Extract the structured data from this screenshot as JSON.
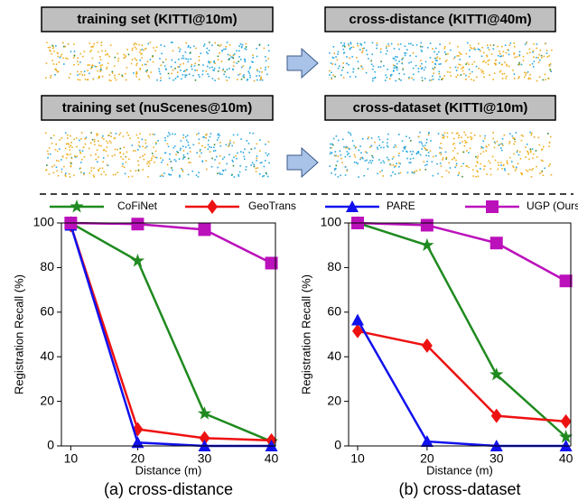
{
  "panels": [
    {
      "title": "training set (KITTI@10m)"
    },
    {
      "title": "cross-distance (KITTI@40m)"
    },
    {
      "title": "training set (nuScenes@10m)"
    },
    {
      "title": "cross-dataset (KITTI@10m)"
    }
  ],
  "chart_data": [
    {
      "type": "line",
      "caption": "(a) cross-distance",
      "xlabel": "Distance (m)",
      "ylabel": "Registration Recall (%)",
      "x": [
        10,
        20,
        30,
        40
      ],
      "xlim": [
        8.6,
        40.6
      ],
      "xticks": [
        10,
        20,
        30,
        40
      ],
      "ylim": [
        0,
        100
      ],
      "yticks": [
        0,
        20,
        40,
        60,
        80,
        100
      ],
      "series": [
        {
          "name": "CoFiNet",
          "color": "#1f8a1f",
          "marker": "star",
          "values": [
            100,
            83,
            14.5,
            2
          ]
        },
        {
          "name": "GeoTrans",
          "color": "#ee1111",
          "marker": "diamond",
          "values": [
            99,
            7.5,
            3.5,
            2.5
          ]
        },
        {
          "name": "PARE",
          "color": "#1111ee",
          "marker": "triangle",
          "values": [
            99,
            1.5,
            0,
            0
          ]
        },
        {
          "name": "UGP (Ours)",
          "color": "#bb11bb",
          "marker": "square",
          "values": [
            100,
            99.5,
            97,
            82
          ]
        }
      ]
    },
    {
      "type": "line",
      "caption": "(b) cross-dataset",
      "xlabel": "Distance (m)",
      "ylabel": "Registration Recall (%)",
      "x": [
        10,
        20,
        30,
        40
      ],
      "xlim": [
        8.7,
        40.7
      ],
      "xticks": [
        10,
        20,
        30,
        40
      ],
      "ylim": [
        0,
        100
      ],
      "yticks": [
        0,
        20,
        40,
        60,
        80,
        100
      ],
      "series": [
        {
          "color": "#1f8a1f",
          "marker": "star",
          "values": [
            100,
            90,
            32,
            4
          ]
        },
        {
          "color": "#ee1111",
          "marker": "diamond",
          "values": [
            51.5,
            45,
            13.5,
            11
          ]
        },
        {
          "color": "#1111ee",
          "marker": "triangle",
          "values": [
            56.5,
            2,
            0,
            0
          ]
        },
        {
          "color": "#bb11bb",
          "marker": "square",
          "values": [
            100,
            99,
            91,
            74
          ]
        }
      ]
    }
  ]
}
